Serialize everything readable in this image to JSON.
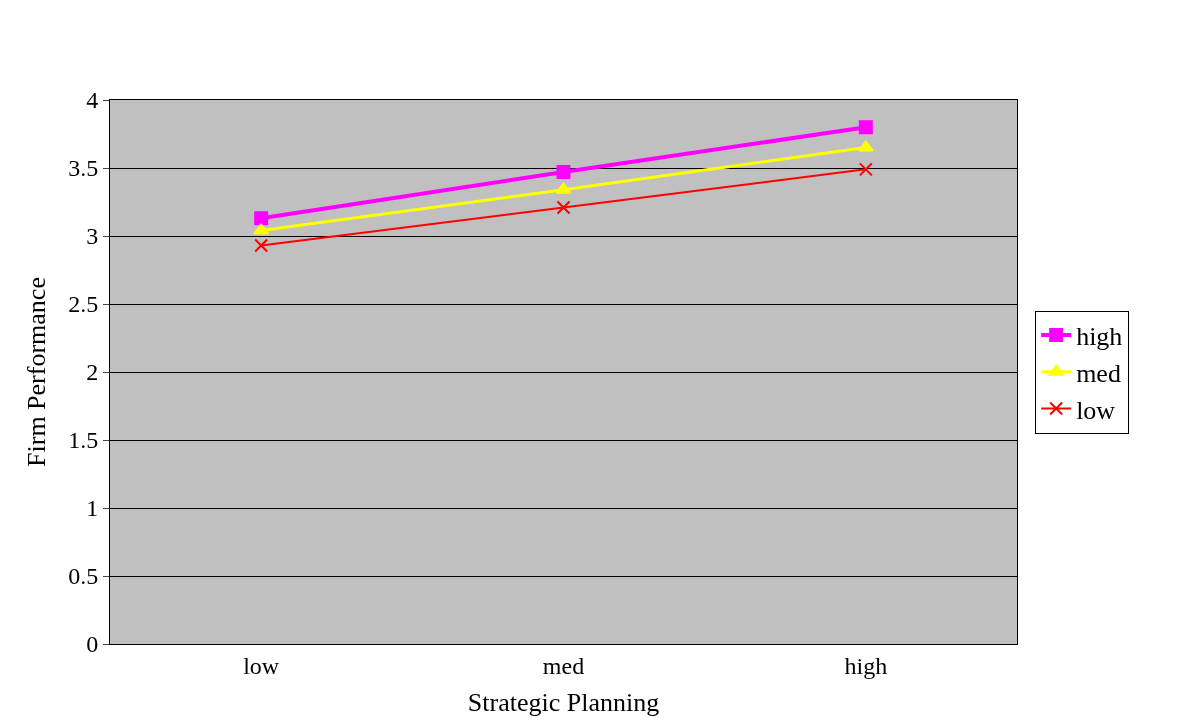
{
  "chart_data": {
    "type": "line",
    "xlabel": "Strategic Planning",
    "ylabel": "Firm Performance",
    "categories": [
      "low",
      "med",
      "high"
    ],
    "series": [
      {
        "name": "high",
        "color": "#ff00ff",
        "marker": "square",
        "values": [
          3.13,
          3.47,
          3.8
        ]
      },
      {
        "name": "med",
        "color": "#ffff00",
        "marker": "triangle",
        "values": [
          3.04,
          3.34,
          3.65
        ]
      },
      {
        "name": "low",
        "color": "#ff0000",
        "marker": "cross",
        "values": [
          2.93,
          3.21,
          3.49
        ]
      }
    ],
    "ylim": [
      0,
      4
    ],
    "yticks": [
      0,
      0.5,
      1,
      1.5,
      2,
      2.5,
      3,
      3.5,
      4
    ],
    "grid": "y",
    "legend": "right"
  }
}
